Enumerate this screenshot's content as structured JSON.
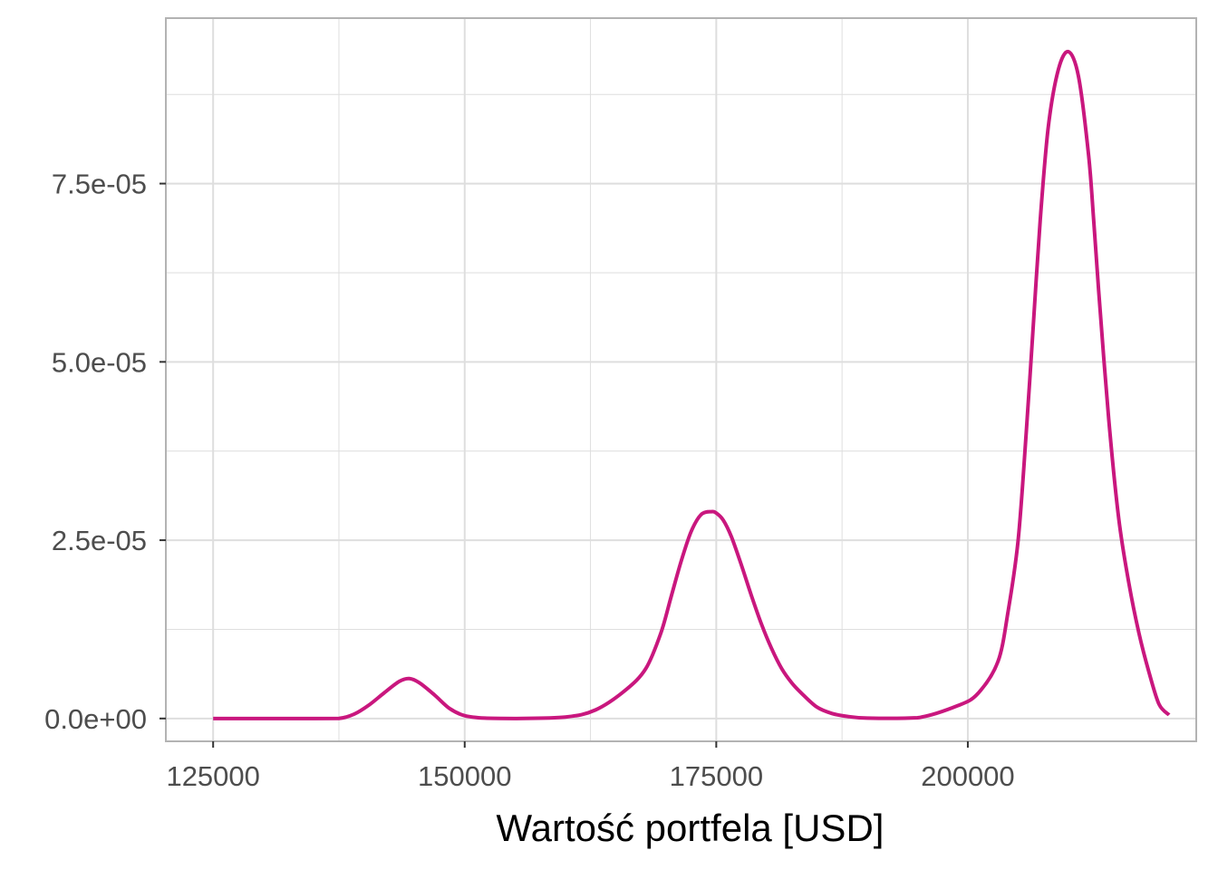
{
  "chart_data": {
    "type": "line",
    "title": "",
    "xlabel": "Wartość portfela [USD]",
    "ylabel": "",
    "xlim": [
      120300,
      222700
    ],
    "ylim": [
      -3.2e-06,
      9.82e-05
    ],
    "x_ticks": [
      125000,
      150000,
      175000,
      200000
    ],
    "x_tick_labels": [
      "125000",
      "150000",
      "175000",
      "200000"
    ],
    "y_ticks": [
      0,
      2.5e-05,
      5e-05,
      7.5e-05
    ],
    "y_tick_labels": [
      "0.0e+00",
      "2.5e-05",
      "5.0e-05",
      "7.5e-05"
    ],
    "x_minor_ticks": [
      137500,
      162500,
      187500
    ],
    "y_minor_ticks": [
      1.25e-05,
      3.75e-05,
      6.25e-05,
      8.75e-05
    ],
    "grid": true,
    "legend": "none",
    "colors": {
      "line": "#c9177e",
      "grid": "#dedede",
      "panel_border": "#b3b3b3",
      "tick_text": "#4d4d4d",
      "axis_title": "#000000"
    },
    "series": [
      {
        "x": [
          125000,
          130000,
          135000,
          137500,
          139000,
          140500,
          142000,
          143500,
          144500,
          145500,
          147000,
          148500,
          150000,
          152000,
          155000,
          160000,
          163000,
          166000,
          168000,
          169500,
          170500,
          171500,
          172500,
          173500,
          174500,
          175000,
          175700,
          176500,
          177500,
          178500,
          179500,
          180500,
          181500,
          182500,
          183500,
          185000,
          186500,
          188000,
          190000,
          195000,
          199000,
          201000,
          203000,
          204000,
          205000,
          205800,
          206500,
          207200,
          208000,
          209000,
          210000,
          211000,
          212000,
          212500,
          213000,
          214000,
          215000,
          216000,
          217000,
          218000,
          219000,
          220000
        ],
        "y": [
          0,
          0,
          0,
          3e-09,
          6e-07,
          1.9e-06,
          3.6e-06,
          5.2e-06,
          5.6e-06,
          5e-06,
          3.3e-06,
          1.4e-06,
          4e-07,
          5e-08,
          0,
          2e-07,
          1.2e-06,
          4e-06,
          7e-06,
          1.2e-05,
          1.7e-05,
          2.2e-05,
          2.62e-05,
          2.86e-05,
          2.9e-05,
          2.88e-05,
          2.78e-05,
          2.55e-05,
          2.15e-05,
          1.72e-05,
          1.32e-05,
          9.8e-06,
          7e-06,
          5e-06,
          3.5e-06,
          1.6e-06,
          7e-07,
          3e-07,
          5e-08,
          1e-07,
          1.8e-06,
          3.5e-06,
          8e-06,
          1.5e-05,
          2.5e-05,
          4e-05,
          5.5e-05,
          7e-05,
          8.3e-05,
          9.1e-05,
          9.35e-05,
          9e-05,
          7.9e-05,
          7e-05,
          6e-05,
          4.2e-05,
          2.8e-05,
          1.9e-05,
          1.2e-05,
          6.5e-06,
          2e-06,
          5e-07
        ]
      }
    ]
  }
}
